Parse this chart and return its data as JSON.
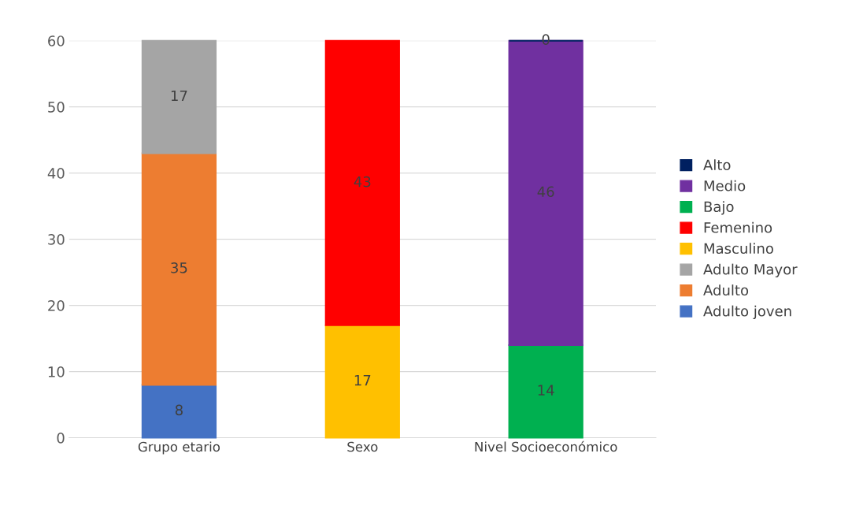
{
  "chart_data": {
    "type": "bar",
    "stacked": true,
    "categories": [
      "Grupo etario",
      "Sexo",
      "Nivel Socioeconómico"
    ],
    "series": [
      {
        "name": "Adulto joven",
        "color": "#4472c4",
        "values": [
          8,
          null,
          null
        ]
      },
      {
        "name": "Adulto",
        "color": "#ed7d31",
        "values": [
          35,
          null,
          null
        ]
      },
      {
        "name": "Adulto Mayor",
        "color": "#a5a5a5",
        "values": [
          17,
          null,
          null
        ]
      },
      {
        "name": "Masculino",
        "color": "#ffc000",
        "values": [
          null,
          17,
          null
        ]
      },
      {
        "name": "Femenino",
        "color": "#ff0000",
        "values": [
          null,
          43,
          null
        ]
      },
      {
        "name": "Bajo",
        "color": "#00b050",
        "values": [
          null,
          null,
          14
        ]
      },
      {
        "name": "Medio",
        "color": "#7030a0",
        "values": [
          null,
          null,
          46
        ]
      },
      {
        "name": "Alto",
        "color": "#002060",
        "values": [
          null,
          null,
          0
        ]
      }
    ],
    "ylim": [
      0,
      60
    ],
    "yticks": [
      0,
      10,
      20,
      30,
      40,
      50,
      60
    ],
    "grid": "y",
    "data_labels": true,
    "legend": "right"
  }
}
